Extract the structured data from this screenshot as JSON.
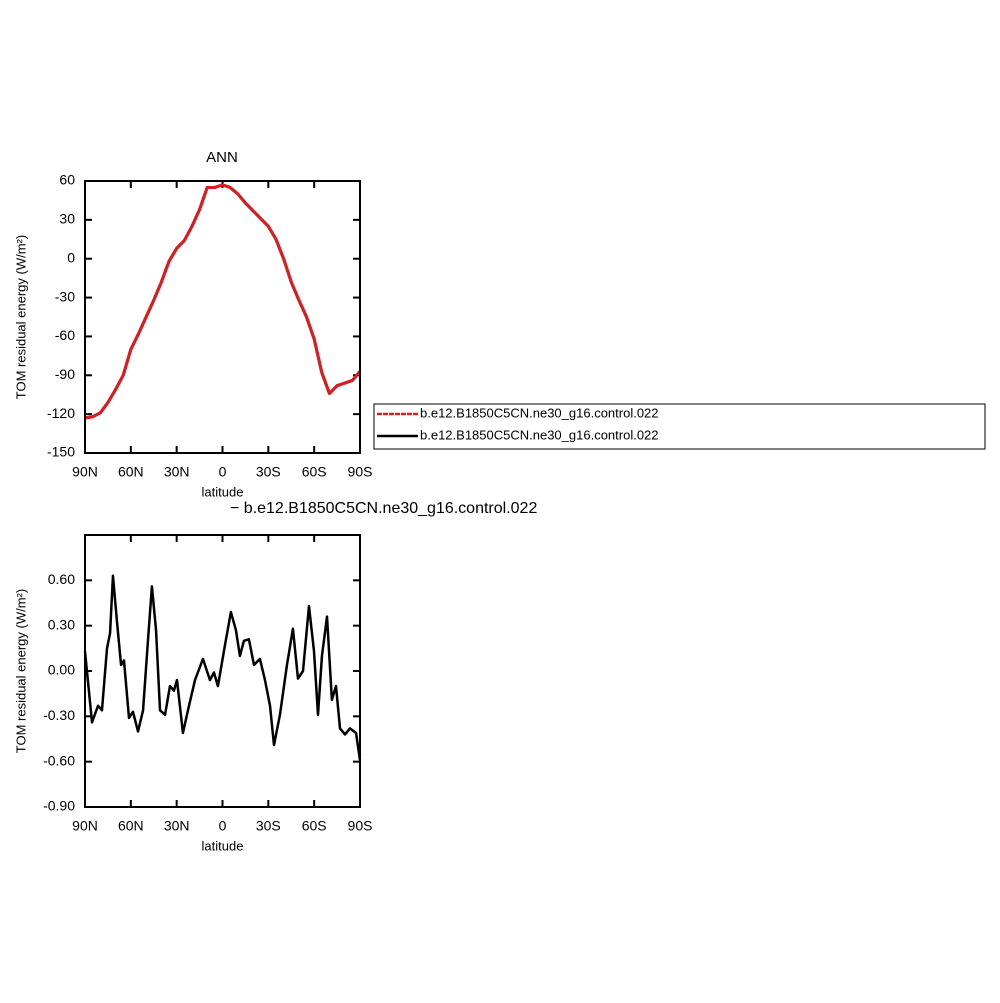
{
  "chart_data": [
    {
      "type": "line",
      "title": "ANN",
      "xlabel": "latitude",
      "ylabel": "TOM residual energy (W/m²)",
      "x": [
        90,
        85,
        80,
        75,
        70,
        65,
        60,
        55,
        50,
        45,
        40,
        35,
        30,
        25,
        20,
        15,
        10,
        5,
        0,
        -5,
        -10,
        -15,
        -20,
        -25,
        -30,
        -35,
        -40,
        -45,
        -50,
        -55,
        -60,
        -65,
        -70,
        -75,
        -80,
        -85,
        -90
      ],
      "series": [
        {
          "name": "b.e12.B1850C5CN.ne30_g16.control.022",
          "color": "#e31a1c",
          "values": [
            -123,
            -122,
            -119,
            -111,
            -101,
            -90,
            -70,
            -58,
            -45,
            -32,
            -18,
            -2,
            8,
            14,
            25,
            38,
            55,
            55,
            57,
            55,
            50,
            43,
            37,
            31,
            25,
            15,
            0,
            -18,
            -32,
            -45,
            -62,
            -88,
            -104,
            -98,
            -96,
            -94,
            -87
          ]
        },
        {
          "name": "b.e12.B1850C5CN.ne30_g16.control.022",
          "color": "#000000",
          "values": [
            -123,
            -122,
            -119,
            -111,
            -101,
            -90,
            -70,
            -58,
            -45,
            -32,
            -18,
            -2,
            8,
            14,
            25,
            38,
            55,
            55,
            57,
            55,
            50,
            43,
            37,
            31,
            25,
            15,
            0,
            -18,
            -32,
            -45,
            -62,
            -88,
            -104,
            -98,
            -96,
            -94,
            -87
          ]
        }
      ],
      "xlim": [
        90,
        -90
      ],
      "xticks": [
        {
          "value": 90,
          "label": "90N"
        },
        {
          "value": 60,
          "label": "60N"
        },
        {
          "value": 30,
          "label": "30N"
        },
        0,
        {
          "value": -30,
          "label": "30S"
        },
        {
          "value": -60,
          "label": "60S"
        },
        {
          "value": -90,
          "label": "90S"
        }
      ],
      "ylim": [
        -150,
        60
      ],
      "yticks": [
        60,
        30,
        0,
        -30,
        -60,
        -90,
        -120,
        -150
      ],
      "legend": "right"
    },
    {
      "type": "line",
      "title": "− b.e12.B1850C5CN.ne30_g16.control.022",
      "xlabel": "latitude",
      "ylabel": "TOM residual energy (W/m²)",
      "x": [
        90,
        85.4,
        81.5,
        78.9,
        75.6,
        73.6,
        71.7,
        69.1,
        66.4,
        64.5,
        61.2,
        58.6,
        55.3,
        52.0,
        48.8,
        46.2,
        43.5,
        40.9,
        37.6,
        34.4,
        31.8,
        29.8,
        25.9,
        22.6,
        18.0,
        12.8,
        8.2,
        5.6,
        3.0,
        -1.6,
        -5.5,
        -8.8,
        -11.4,
        -14.0,
        -17.3,
        -20.6,
        -24.5,
        -27.8,
        -31.1,
        -33.7,
        -37.6,
        -42.2,
        -46.1,
        -49.4,
        -52.7,
        -56.6,
        -59.9,
        -62.5,
        -65.1,
        -68.4,
        -71.6,
        -74.3,
        -76.9,
        -80.2,
        -83.4,
        -87.4,
        -90
      ],
      "values": [
        0.13,
        -0.34,
        -0.23,
        -0.26,
        0.15,
        0.25,
        0.63,
        0.33,
        0.04,
        0.07,
        -0.31,
        -0.27,
        -0.4,
        -0.26,
        0.2,
        0.56,
        0.27,
        -0.26,
        -0.29,
        -0.1,
        -0.13,
        -0.06,
        -0.41,
        -0.26,
        -0.06,
        0.08,
        -0.06,
        -0.01,
        -0.1,
        0.17,
        0.39,
        0.27,
        0.1,
        0.2,
        0.21,
        0.04,
        0.08,
        -0.06,
        -0.23,
        -0.49,
        -0.29,
        0.04,
        0.28,
        -0.05,
        0.0,
        0.43,
        0.13,
        -0.29,
        0.1,
        0.36,
        -0.19,
        -0.1,
        -0.38,
        -0.42,
        -0.38,
        -0.41,
        -0.59
      ],
      "color": "#000000",
      "xlim": [
        90,
        -90
      ],
      "xticks": [
        {
          "value": 90,
          "label": "90N"
        },
        {
          "value": 60,
          "label": "60N"
        },
        {
          "value": 30,
          "label": "30N"
        },
        0,
        {
          "value": -30,
          "label": "30S"
        },
        {
          "value": -60,
          "label": "60S"
        },
        {
          "value": -90,
          "label": "90S"
        }
      ],
      "ylim": [
        -0.9,
        0.9
      ],
      "yticks": [
        {
          "value": 0.6,
          "label": "0.60"
        },
        {
          "value": 0.3,
          "label": "0.30"
        },
        {
          "value": 0,
          "label": "0.00"
        },
        {
          "value": -0.3,
          "label": "-0.30"
        },
        {
          "value": -0.6,
          "label": "-0.60"
        },
        {
          "value": -0.9,
          "label": "-0.90"
        }
      ]
    }
  ]
}
